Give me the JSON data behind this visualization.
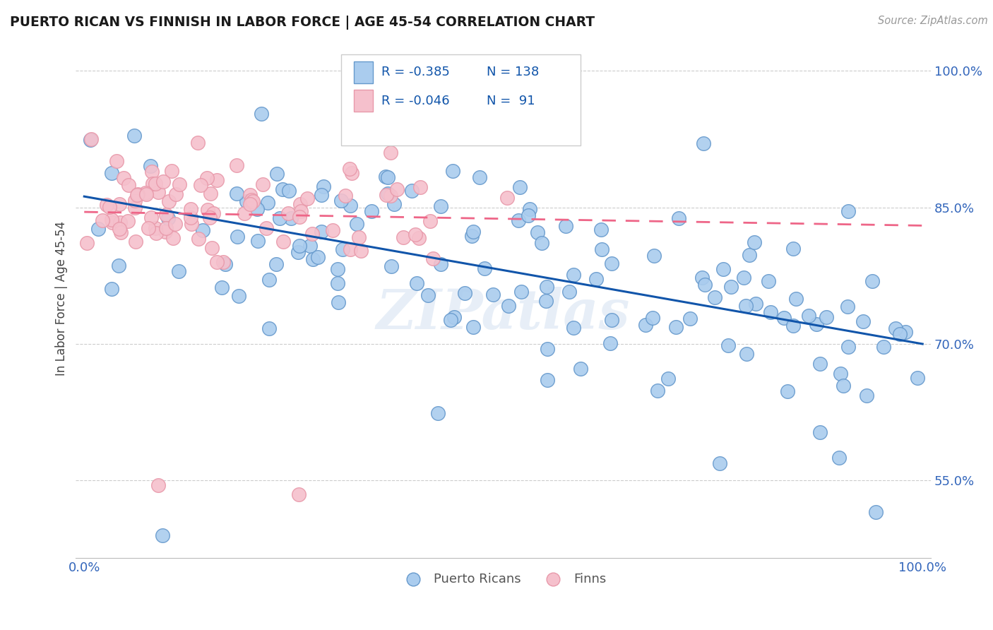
{
  "title": "PUERTO RICAN VS FINNISH IN LABOR FORCE | AGE 45-54 CORRELATION CHART",
  "source_text": "Source: ZipAtlas.com",
  "ylabel": "In Labor Force | Age 45-54",
  "xlim": [
    -0.01,
    1.01
  ],
  "ylim": [
    0.465,
    1.035
  ],
  "yticks": [
    0.55,
    0.7,
    0.85,
    1.0
  ],
  "ytick_labels": [
    "55.0%",
    "70.0%",
    "85.0%",
    "100.0%"
  ],
  "xticks": [
    0.0,
    1.0
  ],
  "xtick_labels": [
    "0.0%",
    "100.0%"
  ],
  "blue_R": -0.385,
  "blue_N": 138,
  "pink_R": -0.046,
  "pink_N": 91,
  "blue_color": "#aaccee",
  "blue_edge": "#6699cc",
  "pink_color": "#f5c0cc",
  "pink_edge": "#e899aa",
  "blue_line_color": "#1155aa",
  "pink_line_color": "#ee6688",
  "tick_color": "#3366bb",
  "legend_label_blue": "Puerto Ricans",
  "legend_label_pink": "Finns",
  "watermark": "ZIPatlas",
  "blue_line_x0": 0.0,
  "blue_line_y0": 0.862,
  "blue_line_x1": 1.0,
  "blue_line_y1": 0.7,
  "pink_line_x0": 0.0,
  "pink_line_y0": 0.845,
  "pink_line_x1": 1.0,
  "pink_line_y1": 0.83
}
